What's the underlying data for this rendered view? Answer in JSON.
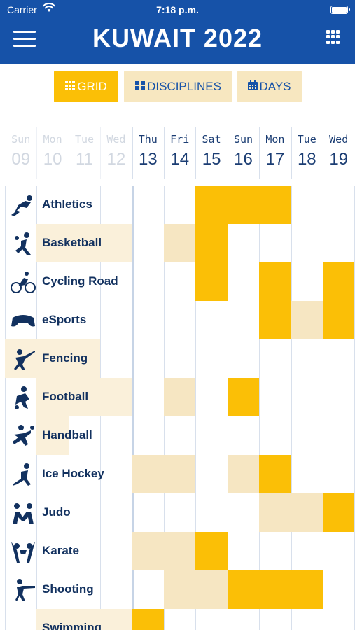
{
  "status_bar": {
    "carrier": "Carrier",
    "time": "7:18 p.m."
  },
  "header": {
    "title": "KUWAIT 2022",
    "background_color": "#1652a8"
  },
  "tabs": [
    {
      "label": "GRID",
      "icon": "grid-icon",
      "active": true
    },
    {
      "label": "DISCIPLINES",
      "icon": "disciplines-icon",
      "active": false
    },
    {
      "label": "DAYS",
      "icon": "calendar-icon",
      "active": false
    }
  ],
  "days": [
    {
      "name": "Sun",
      "num": "09",
      "past": true
    },
    {
      "name": "Mon",
      "num": "10",
      "past": true
    },
    {
      "name": "Tue",
      "num": "11",
      "past": true
    },
    {
      "name": "Wed",
      "num": "12",
      "past": true
    },
    {
      "name": "Thu",
      "num": "13",
      "past": false
    },
    {
      "name": "Fri",
      "num": "14",
      "past": false
    },
    {
      "name": "Sat",
      "num": "15",
      "past": false
    },
    {
      "name": "Sun",
      "num": "16",
      "past": false
    },
    {
      "name": "Mon",
      "num": "17",
      "past": false
    },
    {
      "name": "Tue",
      "num": "18",
      "past": false
    },
    {
      "name": "Wed",
      "num": "19",
      "past": false
    }
  ],
  "colors": {
    "accent": "#fbbf06",
    "accent_light": "#f7e7c0",
    "text_dark": "#12315f"
  },
  "disciplines": [
    {
      "name": "Athletics",
      "icon": "athletics-icon",
      "schedule": {
        "15": "full",
        "16": "full",
        "17": "full"
      }
    },
    {
      "name": "Basketball",
      "icon": "basketball-icon",
      "schedule": {
        "14": "light",
        "15": "full"
      }
    },
    {
      "name": "Cycling Road",
      "icon": "cycling-icon",
      "schedule": {
        "15": "full",
        "17": "full",
        "19": "full"
      }
    },
    {
      "name": "eSports",
      "icon": "esports-icon",
      "schedule": {
        "17": "full",
        "18": "light",
        "19": "full"
      }
    },
    {
      "name": "Fencing",
      "icon": "fencing-icon",
      "schedule": {}
    },
    {
      "name": "Football",
      "icon": "football-icon",
      "schedule": {
        "14": "light",
        "16": "full"
      }
    },
    {
      "name": "Handball",
      "icon": "handball-icon",
      "schedule": {}
    },
    {
      "name": "Ice Hockey",
      "icon": "ice-hockey-icon",
      "schedule": {
        "13": "light",
        "14": "light",
        "16": "light",
        "17": "full"
      }
    },
    {
      "name": "Judo",
      "icon": "judo-icon",
      "schedule": {
        "17": "light",
        "18": "light",
        "19": "full"
      }
    },
    {
      "name": "Karate",
      "icon": "karate-icon",
      "schedule": {
        "13": "light",
        "14": "light",
        "15": "full"
      }
    },
    {
      "name": "Shooting",
      "icon": "shooting-icon",
      "schedule": {
        "14": "light",
        "15": "light",
        "16": "full",
        "17": "full",
        "18": "full"
      }
    },
    {
      "name": "Swimming",
      "icon": "swimming-icon",
      "schedule": {
        "13": "full"
      }
    }
  ]
}
